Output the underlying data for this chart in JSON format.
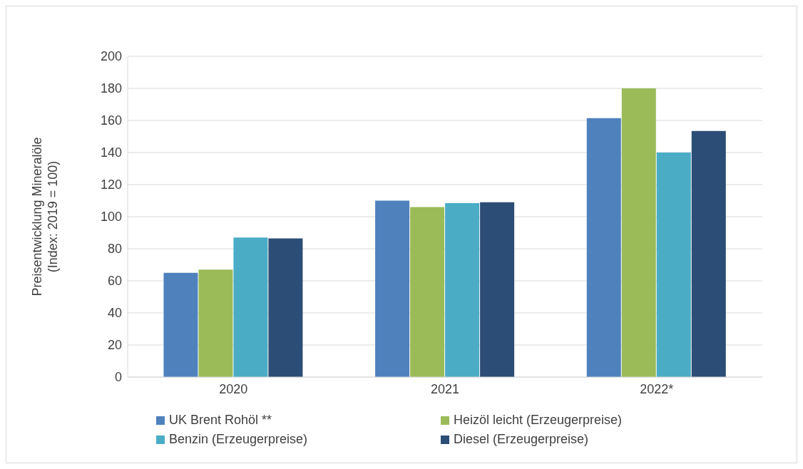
{
  "chart_data": {
    "type": "bar",
    "ylabel": "Preisentwicklung Mineralöle\n(Index: 2019 = 100)",
    "categories": [
      "2020",
      "2021",
      "2022*"
    ],
    "series": [
      {
        "name": "UK Brent Rohöl **",
        "color": "#4f81bd",
        "values": [
          65,
          110,
          161.5
        ]
      },
      {
        "name": "Heizöl leicht (Erzeugerpreise)",
        "color": "#9bbb59",
        "values": [
          67,
          106,
          180
        ]
      },
      {
        "name": "Benzin (Erzeugerpreise)",
        "color": "#4bacc6",
        "values": [
          87,
          108.5,
          140
        ]
      },
      {
        "name": "Diesel (Erzeugerpreise)",
        "color": "#2c4d75",
        "values": [
          86.5,
          109,
          153.5
        ]
      }
    ],
    "ylim": [
      0,
      200
    ],
    "yticks": [
      0,
      20,
      40,
      60,
      80,
      100,
      120,
      140,
      160,
      180,
      200
    ],
    "grid": "y",
    "legend": "bottom"
  }
}
